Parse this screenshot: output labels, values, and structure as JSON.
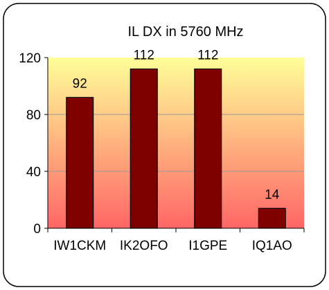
{
  "chart_data": {
    "type": "bar",
    "title": "IL DX in 5760 MHz",
    "categories": [
      "IW1CKM",
      "IK2OFO",
      "I1GPE",
      "IQ1AO"
    ],
    "values": [
      92,
      112,
      112,
      14
    ],
    "data_labels": [
      "92",
      "112",
      "112",
      "14"
    ],
    "yticks": [
      0,
      40,
      80,
      120
    ],
    "ylim": [
      0,
      120
    ],
    "xlabel": "",
    "ylabel": "",
    "grid": true,
    "legend": "none",
    "colors": {
      "bar_fill": "#800000",
      "bar_stroke": "#000000",
      "plot_bg_top": "#ffff99",
      "plot_bg_bottom": "#ff6666",
      "gridline": "#999999",
      "frame": "#000000"
    }
  }
}
